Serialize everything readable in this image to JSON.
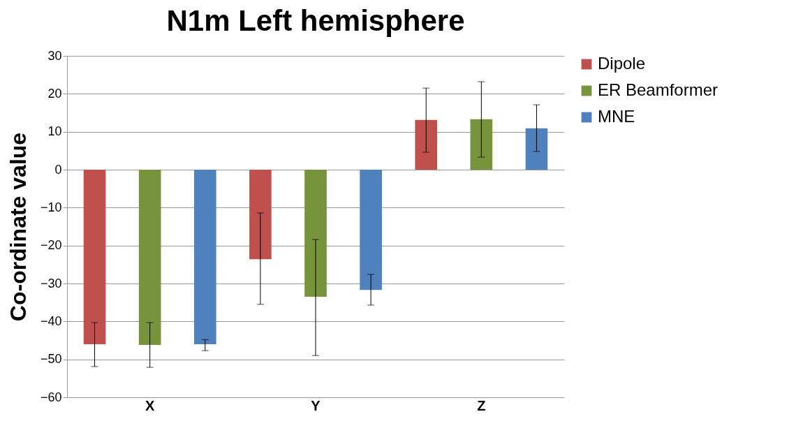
{
  "chart_data": {
    "type": "bar",
    "title": "N1m Left hemisphere",
    "ylabel": "Co-ordinate value",
    "categories": [
      "X",
      "Y",
      "Z"
    ],
    "series": [
      {
        "name": "Dipole",
        "color": "#c0504d",
        "values": [
          -46.0,
          -23.6,
          13.1
        ],
        "errors": [
          [
            -51.9,
            -40.3
          ],
          [
            -35.5,
            -11.4
          ],
          [
            4.6,
            21.5
          ]
        ]
      },
      {
        "name": "ER Beamformer",
        "color": "#77933c",
        "values": [
          -46.2,
          -33.5,
          13.3
        ],
        "errors": [
          [
            -52.1,
            -40.3
          ],
          [
            -49.0,
            -18.4
          ],
          [
            3.3,
            23.2
          ]
        ]
      },
      {
        "name": "MNE",
        "color": "#4f81bd",
        "values": [
          -46.0,
          -31.7,
          10.9
        ],
        "errors": [
          [
            -47.7,
            -44.8
          ],
          [
            -35.7,
            -27.6
          ],
          [
            4.8,
            17.1
          ]
        ]
      }
    ],
    "ylim": [
      -60,
      30
    ],
    "yticks": [
      -60,
      -50,
      -40,
      -30,
      -20,
      -10,
      0,
      10,
      20,
      30
    ],
    "grid": "y",
    "legend": "right"
  }
}
